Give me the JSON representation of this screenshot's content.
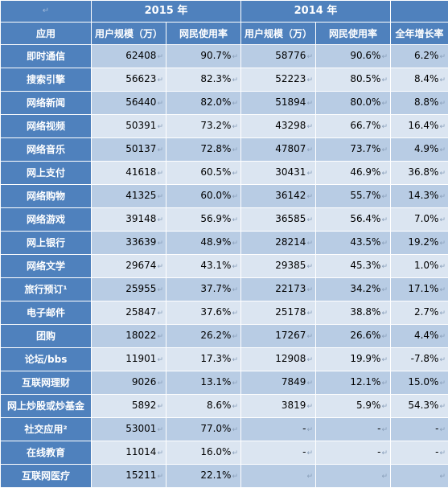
{
  "table": {
    "corner_mark": "↵",
    "years": [
      "2015 年",
      "2014 年"
    ],
    "headers": [
      "应用",
      "用户规模（万）",
      "网民使用率",
      "用户规模（万）",
      "网民使用率",
      "全年增长率"
    ],
    "rows": [
      {
        "app": "即时通信",
        "u2015": "62408",
        "r2015": "90.7%",
        "u2014": "58776",
        "r2014": "90.6%",
        "growth": "6.2%"
      },
      {
        "app": "搜索引擎",
        "u2015": "56623",
        "r2015": "82.3%",
        "u2014": "52223",
        "r2014": "80.5%",
        "growth": "8.4%"
      },
      {
        "app": "网络新闻",
        "u2015": "56440",
        "r2015": "82.0%",
        "u2014": "51894",
        "r2014": "80.0%",
        "growth": "8.8%"
      },
      {
        "app": "网络视频",
        "u2015": "50391",
        "r2015": "73.2%",
        "u2014": "43298",
        "r2014": "66.7%",
        "growth": "16.4%"
      },
      {
        "app": "网络音乐",
        "u2015": "50137",
        "r2015": "72.8%",
        "u2014": "47807",
        "r2014": "73.7%",
        "growth": "4.9%"
      },
      {
        "app": "网上支付",
        "u2015": "41618",
        "r2015": "60.5%",
        "u2014": "30431",
        "r2014": "46.9%",
        "growth": "36.8%"
      },
      {
        "app": "网络购物",
        "u2015": "41325",
        "r2015": "60.0%",
        "u2014": "36142",
        "r2014": "55.7%",
        "growth": "14.3%"
      },
      {
        "app": "网络游戏",
        "u2015": "39148",
        "r2015": "56.9%",
        "u2014": "36585",
        "r2014": "56.4%",
        "growth": "7.0%"
      },
      {
        "app": "网上银行",
        "u2015": "33639",
        "r2015": "48.9%",
        "u2014": "28214",
        "r2014": "43.5%",
        "growth": "19.2%"
      },
      {
        "app": "网络文学",
        "u2015": "29674",
        "r2015": "43.1%",
        "u2014": "29385",
        "r2014": "45.3%",
        "growth": "1.0%"
      },
      {
        "app": "旅行预订¹",
        "u2015": "25955",
        "r2015": "37.7%",
        "u2014": "22173",
        "r2014": "34.2%",
        "growth": "17.1%"
      },
      {
        "app": "电子邮件",
        "u2015": "25847",
        "r2015": "37.6%",
        "u2014": "25178",
        "r2014": "38.8%",
        "growth": "2.7%"
      },
      {
        "app": "团购",
        "u2015": "18022",
        "r2015": "26.2%",
        "u2014": "17267",
        "r2014": "26.6%",
        "growth": "4.4%"
      },
      {
        "app": "论坛/bbs",
        "u2015": "11901",
        "r2015": "17.3%",
        "u2014": "12908",
        "r2014": "19.9%",
        "growth": "-7.8%"
      },
      {
        "app": "互联网理财",
        "u2015": "9026",
        "r2015": "13.1%",
        "u2014": "7849",
        "r2014": "12.1%",
        "growth": "15.0%"
      },
      {
        "app": "网上炒股或炒基金",
        "u2015": "5892",
        "r2015": "8.6%",
        "u2014": "3819",
        "r2014": "5.9%",
        "growth": "54.3%"
      },
      {
        "app": "社交应用²",
        "u2015": "53001",
        "r2015": "77.0%",
        "u2014": "-",
        "r2014": "-",
        "growth": "-"
      },
      {
        "app": "在线教育",
        "u2015": "11014",
        "r2015": "16.0%",
        "u2014": "-",
        "r2014": "-",
        "growth": "-"
      },
      {
        "app": "互联网医疗",
        "u2015": "15211",
        "r2015": "22.1%",
        "u2014": "",
        "r2014": "",
        "growth": ""
      }
    ]
  }
}
